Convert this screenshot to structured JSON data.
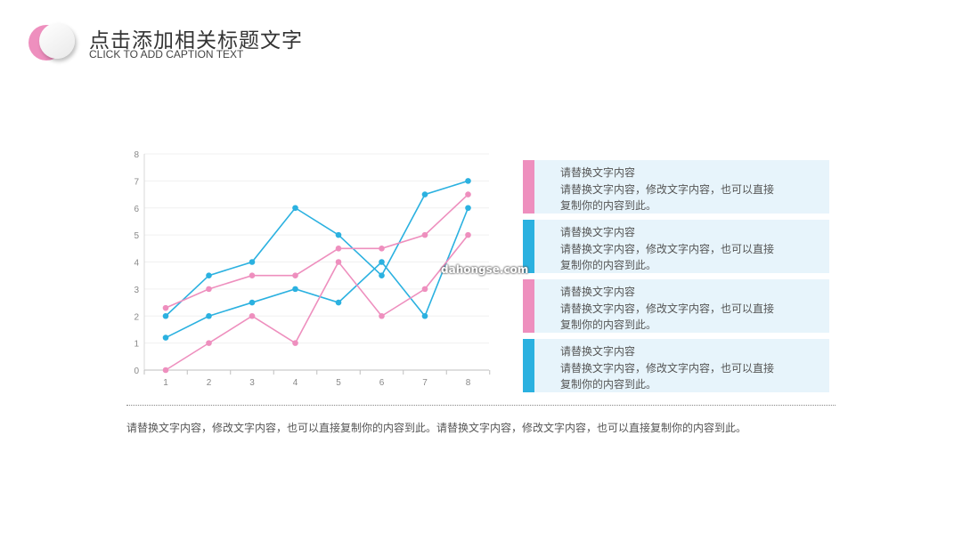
{
  "header": {
    "title": "点击添加相关标题文字",
    "subtitle": "CLICK TO ADD CAPTION TEXT"
  },
  "colors": {
    "pink": "#ee8fbe",
    "blue": "#2bb1e0",
    "box_bg": "#e7f4fb"
  },
  "chart_data": {
    "type": "line",
    "x": [
      1,
      2,
      3,
      4,
      5,
      6,
      7,
      8
    ],
    "ylim": [
      0,
      8
    ],
    "yticks": [
      0,
      1,
      2,
      3,
      4,
      5,
      6,
      7,
      8
    ],
    "grid": true,
    "series": [
      {
        "color": "#2bb1e0",
        "values": [
          2,
          3.5,
          4,
          6,
          5,
          3.5,
          6.5,
          7
        ]
      },
      {
        "color": "#2bb1e0",
        "values": [
          1.2,
          2,
          2.5,
          3,
          2.5,
          4,
          2,
          6
        ]
      },
      {
        "color": "#ee8fbe",
        "values": [
          2.3,
          3,
          3.5,
          3.5,
          4.5,
          4.5,
          5,
          6.5
        ]
      },
      {
        "color": "#ee8fbe",
        "values": [
          0,
          1,
          2,
          1,
          4,
          2,
          3,
          5
        ]
      }
    ]
  },
  "text_boxes": [
    {
      "accent": "#ee8fbe",
      "line1": "请替换文字内容",
      "line2": "请替换文字内容，修改文字内容，也可以直接",
      "line3": "复制你的内容到此。"
    },
    {
      "accent": "#2bb1e0",
      "line1": "请替换文字内容",
      "line2": "请替换文字内容，修改文字内容，也可以直接",
      "line3": "复制你的内容到此。"
    },
    {
      "accent": "#ee8fbe",
      "line1": "请替换文字内容",
      "line2": "请替换文字内容，修改文字内容，也可以直接",
      "line3": "复制你的内容到此。"
    },
    {
      "accent": "#2bb1e0",
      "line1": "请替换文字内容",
      "line2": "请替换文字内容，修改文字内容，也可以直接",
      "line3": "复制你的内容到此。"
    }
  ],
  "bottom_text": "请替换文字内容，修改文字内容，也可以直接复制你的内容到此。请替换文字内容，修改文字内容，也可以直接复制你的内容到此。",
  "watermark": "dahongse.com"
}
